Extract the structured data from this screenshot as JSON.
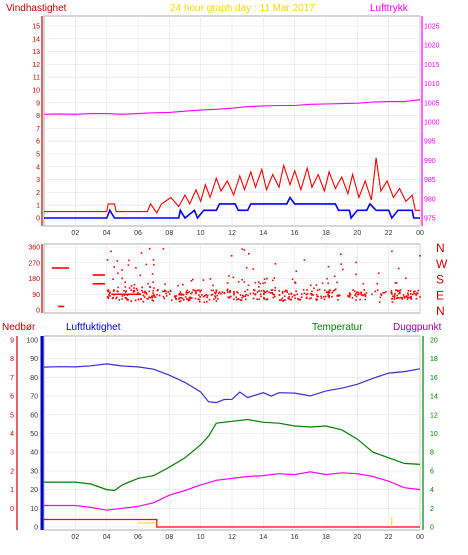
{
  "colors": {
    "wind": "#ff0000",
    "gust_dark": "#cc0000",
    "wind_avg": "#0000ff",
    "pressure": "#ff00ff",
    "direction": "#ff0000",
    "rain": "#ff0000",
    "humidity": "#3333cc",
    "temperature": "#008000",
    "dewpoint": "#ff00ff",
    "grid": "#e6e6e6",
    "title": "#ffd700",
    "green_label": "#008000",
    "purple_label": "#990099",
    "blue_label": "#0000cc",
    "rain_label": "#cc0000"
  },
  "chart_data": [
    {
      "id": "wind_pressure",
      "type": "line",
      "title": "24 hour graph day : 11 Mar 2017",
      "left_label": "Vindhastighet",
      "right_label": "Lufttrykk",
      "y_left_ticks": [
        "15",
        "14",
        "13",
        "12",
        "11",
        "10",
        "9",
        "8",
        "7",
        "6",
        "5",
        "4",
        "3",
        "2",
        "1",
        "0"
      ],
      "y_right_ticks": [
        "1025",
        "1020",
        "1015",
        "1010",
        "1005",
        "1000",
        "995",
        "990",
        "985",
        "980",
        "975"
      ],
      "x_ticks": [
        "02",
        "04",
        "06",
        "08",
        "10",
        "12",
        "14",
        "16",
        "18",
        "20",
        "22",
        "00"
      ],
      "ylim_left": [
        0,
        15.5
      ],
      "ylim_right": [
        973,
        1025
      ],
      "xlim": [
        0,
        24
      ],
      "series": [
        {
          "key": "pressure",
          "axis": "right",
          "points": [
            [
              0,
              1002
            ],
            [
              1,
              1002.1
            ],
            [
              2,
              1002
            ],
            [
              3,
              1002.2
            ],
            [
              4,
              1002.2
            ],
            [
              5,
              1002
            ],
            [
              6,
              1002.2
            ],
            [
              7,
              1002.4
            ],
            [
              8,
              1002.5
            ],
            [
              9,
              1002.8
            ],
            [
              10,
              1003.1
            ],
            [
              11,
              1003.3
            ],
            [
              12,
              1003.6
            ],
            [
              13,
              1004
            ],
            [
              14,
              1004.2
            ],
            [
              15,
              1004.3
            ],
            [
              16,
              1004.3
            ],
            [
              17,
              1004.6
            ],
            [
              18,
              1004.7
            ],
            [
              19,
              1004.8
            ],
            [
              20,
              1004.9
            ],
            [
              21,
              1005.2
            ],
            [
              22,
              1005.3
            ],
            [
              23,
              1005.3
            ],
            [
              24,
              1005.8
            ]
          ]
        },
        {
          "key": "gust",
          "axis": "left",
          "points": [
            [
              0,
              0.5
            ],
            [
              4,
              0.5
            ],
            [
              4.1,
              1.1
            ],
            [
              4.5,
              1.1
            ],
            [
              4.6,
              0.5
            ],
            [
              6.6,
              0.5
            ],
            [
              6.8,
              1.1
            ],
            [
              7.2,
              0.4
            ],
            [
              7.5,
              1.1
            ],
            [
              8.1,
              1.6
            ],
            [
              8.6,
              0.9
            ],
            [
              9,
              1.8
            ],
            [
              9.3,
              1.1
            ],
            [
              9.7,
              2.2
            ],
            [
              10,
              1.3
            ],
            [
              10.3,
              2.6
            ],
            [
              10.6,
              1.6
            ],
            [
              11,
              3.1
            ],
            [
              11.3,
              2.1
            ],
            [
              11.7,
              2.9
            ],
            [
              12.1,
              1.8
            ],
            [
              12.5,
              3.3
            ],
            [
              12.8,
              2.2
            ],
            [
              13.2,
              3.6
            ],
            [
              13.5,
              2.4
            ],
            [
              13.9,
              3.8
            ],
            [
              14.2,
              2.2
            ],
            [
              14.6,
              3.4
            ],
            [
              15,
              2.4
            ],
            [
              15.3,
              4.1
            ],
            [
              15.7,
              2.6
            ],
            [
              16,
              3.7
            ],
            [
              16.4,
              2.2
            ],
            [
              16.8,
              3.9
            ],
            [
              17.1,
              2.4
            ],
            [
              17.5,
              3.4
            ],
            [
              17.9,
              2.1
            ],
            [
              18.2,
              3.6
            ],
            [
              18.6,
              2.3
            ],
            [
              19,
              3.2
            ],
            [
              19.4,
              1.9
            ],
            [
              19.7,
              3.4
            ],
            [
              20.1,
              1.6
            ],
            [
              20.5,
              2.9
            ],
            [
              20.9,
              1.4
            ],
            [
              21.2,
              4.7
            ],
            [
              21.5,
              2.1
            ],
            [
              21.9,
              2.9
            ],
            [
              22.3,
              1.6
            ],
            [
              22.7,
              2.3
            ],
            [
              23.1,
              1.3
            ],
            [
              23.5,
              1.8
            ],
            [
              23.7,
              0.6
            ],
            [
              24,
              0.6
            ]
          ]
        },
        {
          "key": "wind_avg",
          "axis": "left",
          "points": [
            [
              0,
              0
            ],
            [
              4,
              0
            ],
            [
              4.2,
              0.6
            ],
            [
              4.5,
              0
            ],
            [
              8.6,
              0
            ],
            [
              8.7,
              0.6
            ],
            [
              9,
              0
            ],
            [
              9.6,
              0.6
            ],
            [
              9.8,
              0
            ],
            [
              10.2,
              0.6
            ],
            [
              11,
              0.6
            ],
            [
              11.2,
              1.1
            ],
            [
              12.2,
              1.1
            ],
            [
              12.4,
              0.6
            ],
            [
              13,
              0.6
            ],
            [
              13.2,
              1.1
            ],
            [
              15.5,
              1.1
            ],
            [
              15.7,
              1.6
            ],
            [
              16,
              1.1
            ],
            [
              18.6,
              1.1
            ],
            [
              18.8,
              0.6
            ],
            [
              19.5,
              0.6
            ],
            [
              19.6,
              0
            ],
            [
              20,
              0.6
            ],
            [
              20.6,
              0.6
            ],
            [
              20.8,
              1.1
            ],
            [
              21.2,
              0.6
            ],
            [
              22,
              0.6
            ],
            [
              22.2,
              0
            ],
            [
              22.6,
              0.6
            ],
            [
              23.5,
              0.6
            ],
            [
              23.6,
              0
            ],
            [
              24,
              0
            ]
          ]
        }
      ]
    },
    {
      "id": "direction",
      "type": "scatter",
      "y_left_ticks": [
        "360",
        "270",
        "180",
        "90",
        "0"
      ],
      "right_labels": [
        "N",
        "W",
        "S",
        "E",
        "N"
      ],
      "ylim": [
        0,
        360
      ],
      "xlim": [
        0,
        24
      ]
    },
    {
      "id": "humidity_temp",
      "type": "line",
      "labels": {
        "rain": "Nedbør",
        "humidity": "Luftfuktighet",
        "temperature": "Temperatur",
        "dewpoint": "Duggpunkt"
      },
      "rain_ticks": [
        "9",
        "8",
        "7",
        "6",
        "5",
        "4",
        "3",
        "2",
        "1",
        "0"
      ],
      "humidity_ticks": [
        "100",
        "90",
        "80",
        "70",
        "60",
        "50",
        "40",
        "30",
        "20",
        "10",
        "0"
      ],
      "right_ticks": [
        "20",
        "18",
        "16",
        "14",
        "12",
        "10",
        "8",
        "6",
        "4",
        "2",
        "0"
      ],
      "x_ticks": [
        "02",
        "04",
        "06",
        "08",
        "10",
        "12",
        "14",
        "16",
        "18",
        "20",
        "22",
        "00"
      ],
      "ylim_humidity": [
        0,
        100
      ],
      "ylim_right": [
        0,
        20
      ],
      "xlim": [
        0,
        24
      ],
      "series": [
        {
          "key": "humidity",
          "axis": "humidity",
          "points": [
            [
              0,
              85.5
            ],
            [
              1,
              85.7
            ],
            [
              2,
              85.6
            ],
            [
              3,
              86.2
            ],
            [
              4,
              87.2
            ],
            [
              5,
              86.1
            ],
            [
              6,
              85.6
            ],
            [
              7,
              84.4
            ],
            [
              8,
              81.2
            ],
            [
              9,
              77.3
            ],
            [
              10,
              72.2
            ],
            [
              10.5,
              67
            ],
            [
              11,
              66.5
            ],
            [
              11.5,
              68.2
            ],
            [
              12,
              68.3
            ],
            [
              12.5,
              72.2
            ],
            [
              13,
              69.2
            ],
            [
              14,
              71.8
            ],
            [
              14.5,
              70
            ],
            [
              15,
              71.8
            ],
            [
              16,
              71.6
            ],
            [
              17,
              70.1
            ],
            [
              18,
              72.8
            ],
            [
              19,
              74.2
            ],
            [
              20,
              76.3
            ],
            [
              21,
              79.5
            ],
            [
              22,
              82.3
            ],
            [
              23,
              83.1
            ],
            [
              24,
              84.6
            ]
          ]
        },
        {
          "key": "temperature",
          "axis": "right",
          "points": [
            [
              0,
              4.8
            ],
            [
              1,
              4.8
            ],
            [
              2,
              4.8
            ],
            [
              3,
              4.6
            ],
            [
              4,
              4.0
            ],
            [
              4.5,
              3.9
            ],
            [
              5,
              4.5
            ],
            [
              6,
              5.2
            ],
            [
              7,
              5.5
            ],
            [
              8,
              6.4
            ],
            [
              9,
              7.4
            ],
            [
              10,
              8.8
            ],
            [
              10.5,
              9.7
            ],
            [
              11,
              11.1
            ],
            [
              12,
              11.3
            ],
            [
              13,
              11.5
            ],
            [
              14,
              11.2
            ],
            [
              15,
              11.1
            ],
            [
              16,
              10.8
            ],
            [
              17,
              10.7
            ],
            [
              18,
              10.8
            ],
            [
              19,
              10.4
            ],
            [
              20,
              9.4
            ],
            [
              21,
              8.0
            ],
            [
              22,
              7.4
            ],
            [
              23,
              6.8
            ],
            [
              24,
              6.7
            ]
          ]
        },
        {
          "key": "dewpoint",
          "axis": "right",
          "points": [
            [
              0,
              2.3
            ],
            [
              2,
              2.3
            ],
            [
              3,
              2.1
            ],
            [
              4,
              1.8
            ],
            [
              5,
              2.0
            ],
            [
              6,
              2.2
            ],
            [
              7,
              2.6
            ],
            [
              8,
              3.4
            ],
            [
              9,
              3.9
            ],
            [
              10,
              4.5
            ],
            [
              11,
              5.0
            ],
            [
              12,
              5.2
            ],
            [
              13,
              5.4
            ],
            [
              14,
              5.5
            ],
            [
              15,
              5.7
            ],
            [
              16,
              5.6
            ],
            [
              17,
              5.9
            ],
            [
              18,
              5.6
            ],
            [
              19,
              5.8
            ],
            [
              20,
              5.7
            ],
            [
              21,
              5.4
            ],
            [
              22,
              4.9
            ],
            [
              23,
              4.2
            ],
            [
              24,
              4.0
            ]
          ]
        },
        {
          "key": "rain",
          "axis": "rain",
          "points": [
            [
              0,
              0.4
            ],
            [
              7.2,
              0.4
            ],
            [
              7.2,
              0
            ],
            [
              24,
              0
            ]
          ]
        }
      ]
    }
  ]
}
